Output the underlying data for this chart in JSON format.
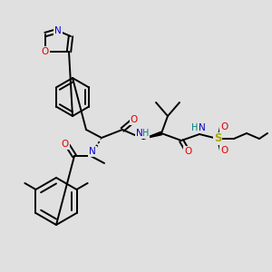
{
  "bg_color": "#e0e0e0",
  "bond_color": "#000000",
  "bond_width": 1.4,
  "atom_colors": {
    "N": "#0000cc",
    "O": "#dd0000",
    "S": "#aaaa00",
    "H": "#008080",
    "C": "#000000"
  },
  "figsize": [
    3.0,
    3.0
  ],
  "dpi": 100
}
